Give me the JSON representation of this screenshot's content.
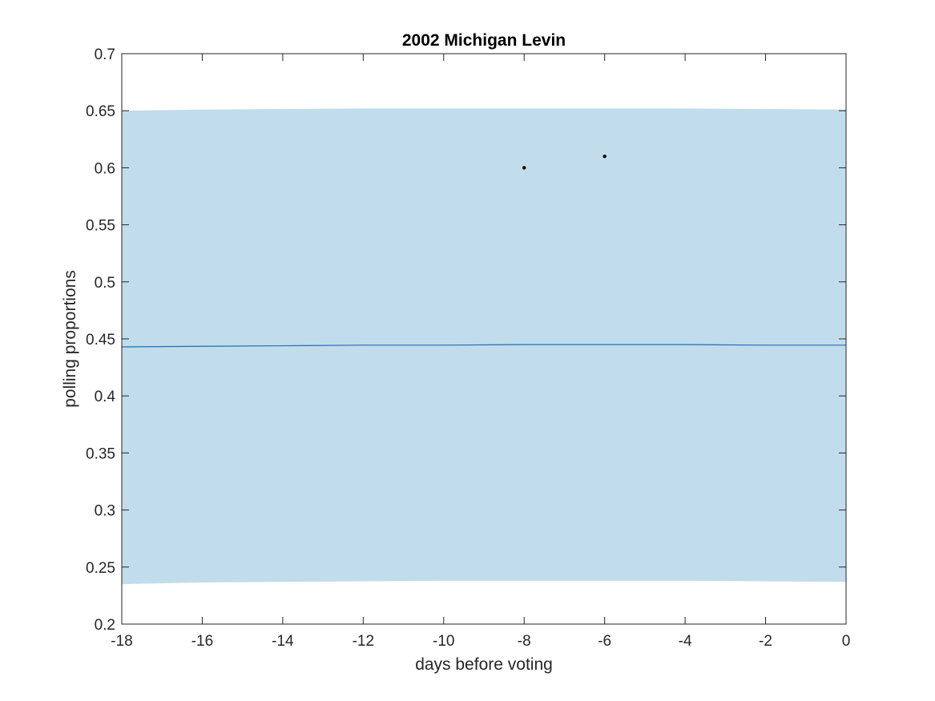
{
  "chart_data": {
    "type": "area",
    "title": "2002 Michigan Levin",
    "xlabel": "days before voting",
    "ylabel": "polling proportions",
    "xlim": [
      -18,
      0
    ],
    "ylim": [
      0.2,
      0.7
    ],
    "xticks": [
      -18,
      -16,
      -14,
      -12,
      -10,
      -8,
      -6,
      -4,
      -2,
      0
    ],
    "xtick_labels": [
      "-18",
      "-16",
      "-14",
      "-12",
      "-10",
      "-8",
      "-6",
      "-4",
      "-2",
      "0"
    ],
    "yticks": [
      0.2,
      0.25,
      0.3,
      0.35,
      0.4,
      0.45,
      0.5,
      0.55,
      0.6,
      0.65,
      0.7
    ],
    "ytick_labels": [
      "0.2",
      "0.25",
      "0.3",
      "0.35",
      "0.4",
      "0.45",
      "0.5",
      "0.55",
      "0.6",
      "0.65",
      "0.7"
    ],
    "grid": false,
    "band": {
      "x": [
        -18,
        -16,
        -14,
        -12,
        -10,
        -8,
        -6,
        -4,
        -2,
        0
      ],
      "upper": [
        0.65,
        0.651,
        0.6515,
        0.652,
        0.652,
        0.652,
        0.652,
        0.652,
        0.6515,
        0.651
      ],
      "lower": [
        0.235,
        0.2365,
        0.237,
        0.2375,
        0.238,
        0.238,
        0.238,
        0.238,
        0.2375,
        0.237
      ],
      "color": "#c1dcea"
    },
    "line": {
      "x": [
        -18,
        -16,
        -14,
        -12,
        -10,
        -8,
        -6,
        -4,
        -2,
        0
      ],
      "y": [
        0.443,
        0.4435,
        0.444,
        0.4445,
        0.4445,
        0.445,
        0.445,
        0.445,
        0.4445,
        0.4445
      ],
      "color": "#1f6fbf"
    },
    "points": {
      "x": [
        -8,
        -6
      ],
      "y": [
        0.6,
        0.61
      ],
      "color": "#000000"
    }
  }
}
